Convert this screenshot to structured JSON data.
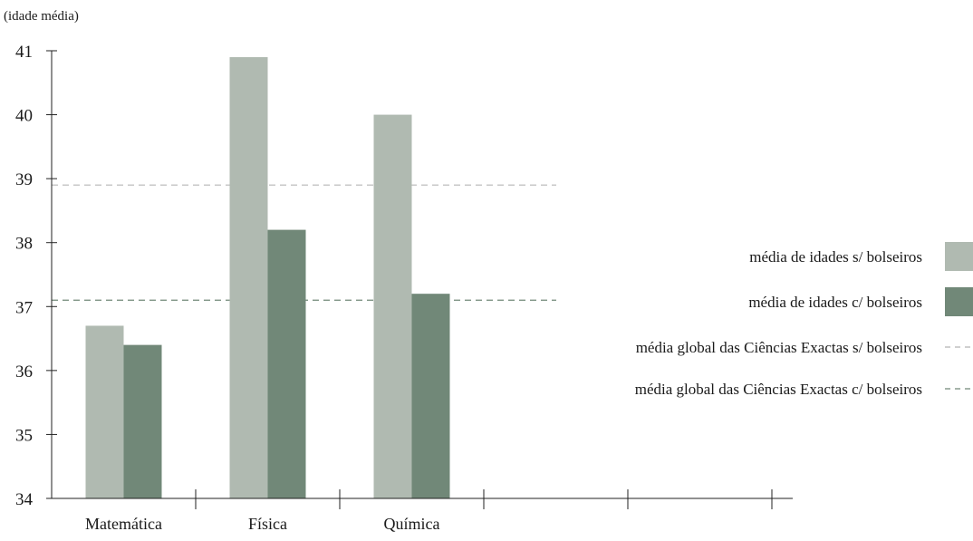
{
  "chart_data": {
    "type": "bar",
    "ylabel": "(idade média)",
    "ylim": [
      34,
      41
    ],
    "yticks": [
      34,
      35,
      36,
      37,
      38,
      39,
      40,
      41
    ],
    "categories": [
      "Matemática",
      "Física",
      "Química",
      "",
      ""
    ],
    "series": [
      {
        "name": "média de idades s/ bolseiros",
        "color": "#b0bab1",
        "values": [
          36.7,
          40.9,
          40.0,
          null,
          null
        ]
      },
      {
        "name": "média de idades c/ bolseiros",
        "color": "#718878",
        "values": [
          36.4,
          38.2,
          37.2,
          null,
          null
        ]
      }
    ],
    "reference_lines": [
      {
        "name": "média global das Ciências Exactas s/ bolseiros",
        "value": 38.9,
        "color": "#b5b5b5",
        "style": "dashed"
      },
      {
        "name": "média global das Ciências Exactas c/ bolseiros",
        "value": 37.1,
        "color": "#718878",
        "style": "dashed"
      }
    ],
    "legend_position": "right",
    "grid": false
  }
}
